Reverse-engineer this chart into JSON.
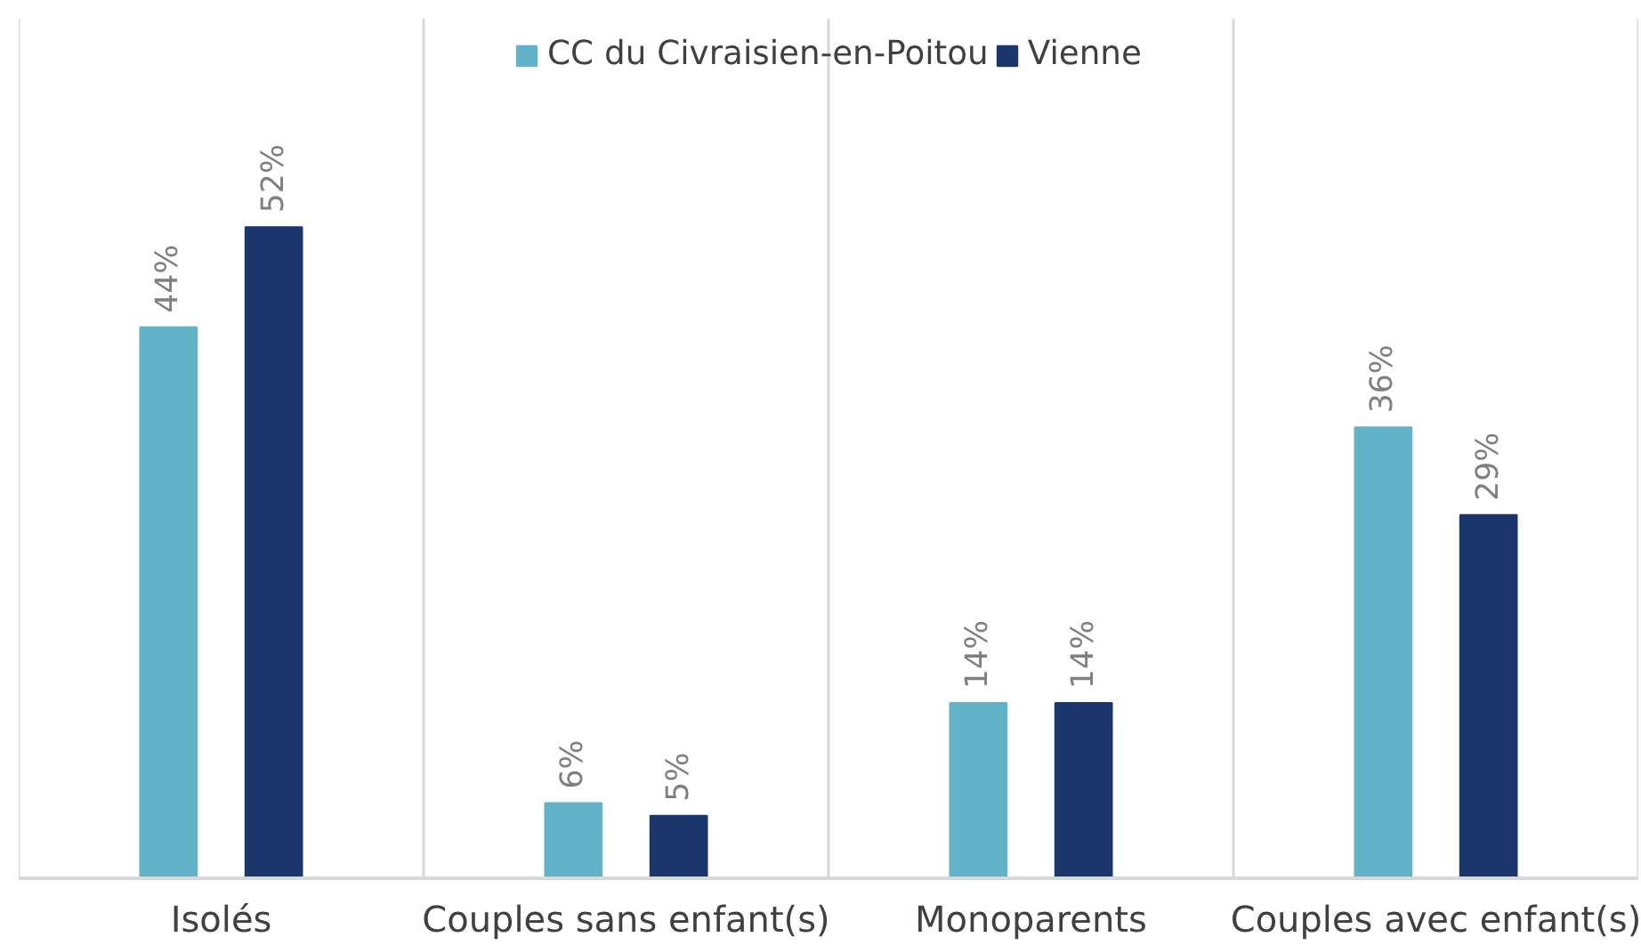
{
  "chart_data": {
    "type": "bar",
    "categories": [
      "Isolés",
      "Couples sans enfant(s)",
      "Monoparents",
      "Couples avec enfant(s)"
    ],
    "series": [
      {
        "name": "CC du Civraisien-en-Poitou",
        "color": "#62b3c7",
        "values": [
          44,
          6,
          14,
          36
        ],
        "value_labels": [
          "44%",
          "6%",
          "14%",
          "36%"
        ]
      },
      {
        "name": "Vienne",
        "color": "#1b366b",
        "values": [
          52,
          5,
          14,
          29
        ],
        "value_labels": [
          "52%",
          "5%",
          "14%",
          "29%"
        ]
      }
    ],
    "grid": "x",
    "legend": "top"
  }
}
